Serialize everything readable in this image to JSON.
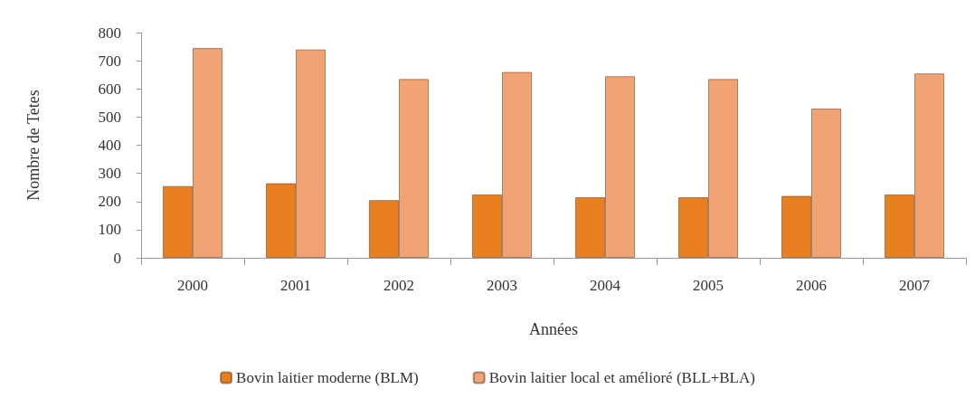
{
  "chart_data": {
    "type": "bar",
    "xlabel": "Années",
    "ylabel": "Nombre de Tetes",
    "categories": [
      "2000",
      "2001",
      "2002",
      "2003",
      "2004",
      "2005",
      "2006",
      "2007"
    ],
    "series": [
      {
        "name": "Bovin laitier moderne (BLM)",
        "color": "#e8801f",
        "values": [
          255,
          265,
          205,
          225,
          215,
          215,
          220,
          225
        ]
      },
      {
        "name": "Bovin laitier local et amélioré (BLL+BLA)",
        "color": "#f2a374",
        "values": [
          745,
          740,
          635,
          660,
          645,
          635,
          530,
          655
        ]
      }
    ],
    "ylim": [
      0,
      800
    ],
    "yticks": [
      0,
      100,
      200,
      300,
      400,
      500,
      600,
      700,
      800
    ],
    "grid": false,
    "legend": "bottom"
  }
}
